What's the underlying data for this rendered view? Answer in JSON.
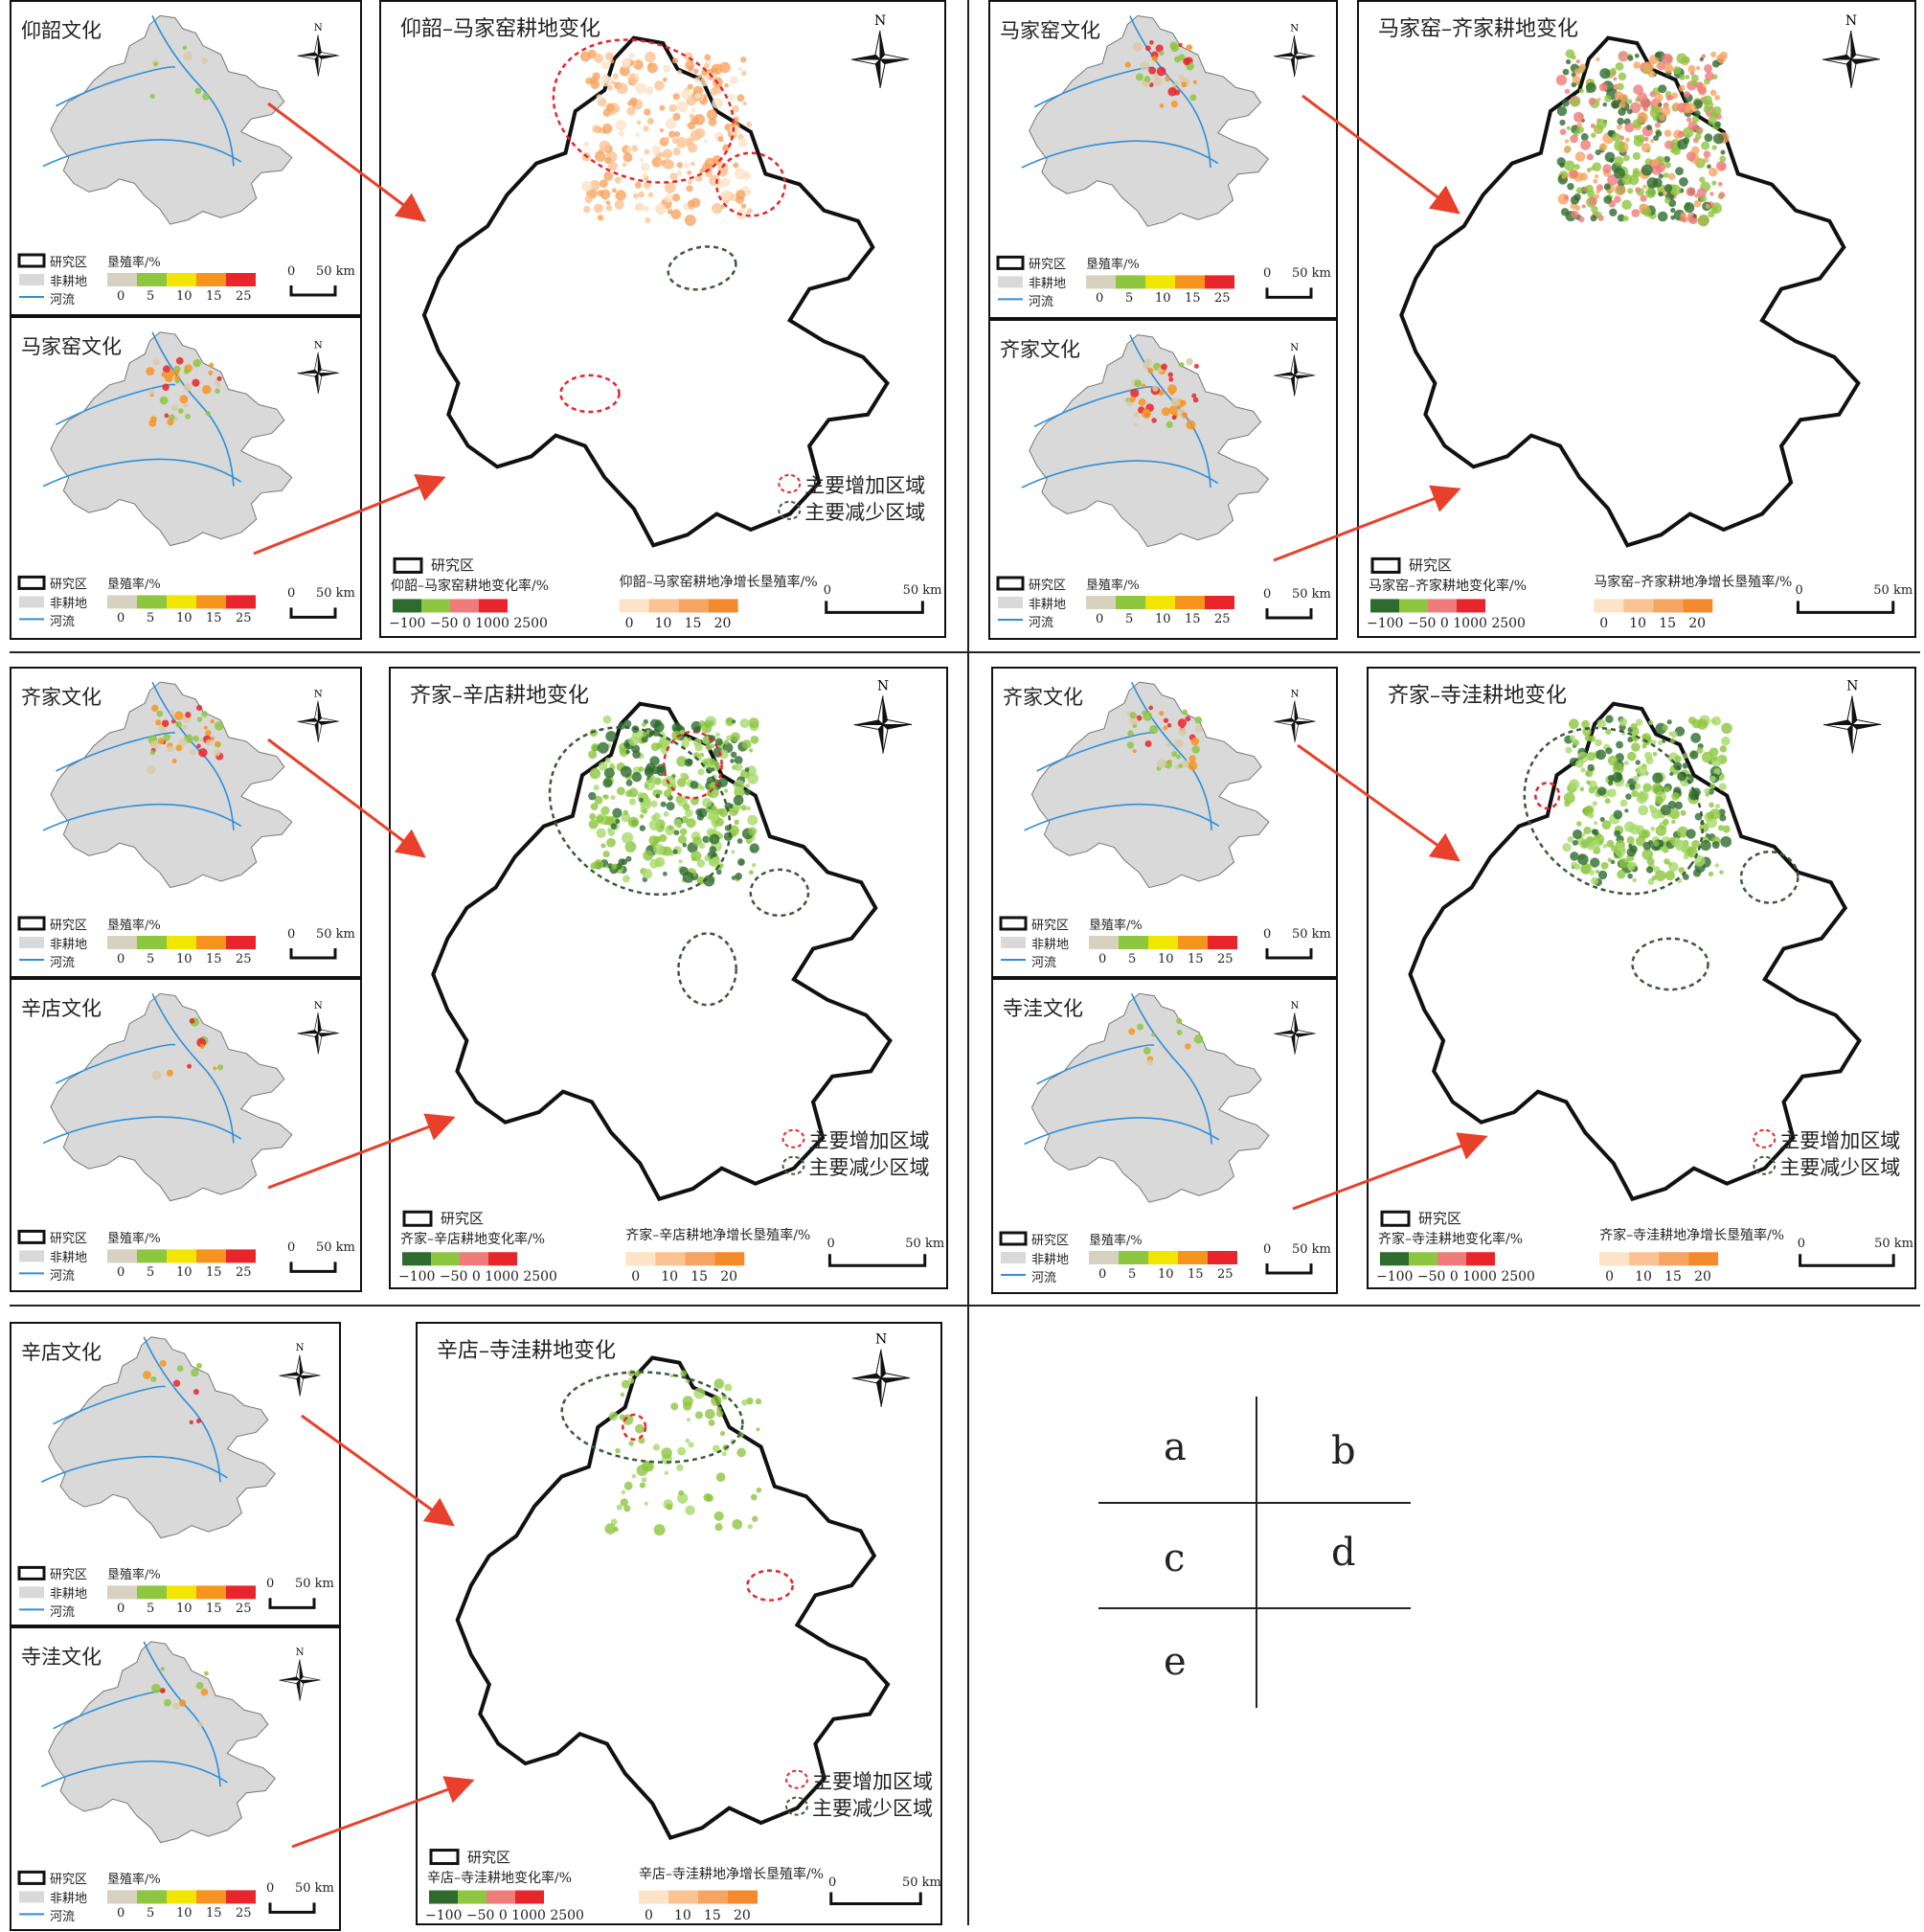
{
  "legend": {
    "study_area": "研究区",
    "non_farmland": "非耕地",
    "river": "河流",
    "reclaim_rate": "垦殖率/%",
    "reclaim_ticks": [
      "0",
      "5",
      "10",
      "15",
      "25"
    ],
    "change_ticks": "−100 −50 0 1000 2500",
    "net_ticks": [
      "0",
      "10",
      "15",
      "20"
    ],
    "scale_zero": "0",
    "scale_label": "50 km",
    "north": "N",
    "increase": "主要增加区域",
    "decrease": "主要减少区域"
  },
  "colors": {
    "reclaim": [
      "#d6d2bf",
      "#8dc63f",
      "#f2e500",
      "#f7941d",
      "#e8252a"
    ],
    "change": [
      "#2e6b2e",
      "#8dc63f",
      "#ef7b7b",
      "#e8252a"
    ],
    "net": [
      "#fde3c8",
      "#fbc393",
      "#f7a462",
      "#f58a2c"
    ],
    "increase_ring": "#e8252a",
    "decrease_ring": "#3a5a3a",
    "arrow": "#e8402a",
    "map_fill": "#d9d9d9",
    "river": "#2f8fd8"
  },
  "panels": [
    {
      "id": "a",
      "top": "仰韶文化",
      "bottom": "马家窑文化",
      "main": "仰韶–马家窑耕地变化",
      "change_label": "仰韶–马家窑耕地变化率/%",
      "net_label": "仰韶–马家窑耕地净增长垦殖率/%"
    },
    {
      "id": "b",
      "top": "马家窑文化",
      "bottom": "齐家文化",
      "main": "马家窑–齐家耕地变化",
      "change_label": "马家窑–齐家耕地变化率/%",
      "net_label": "马家窑–齐家耕地净增长垦殖率/%"
    },
    {
      "id": "c",
      "top": "齐家文化",
      "bottom": "辛店文化",
      "main": "齐家–辛店耕地变化",
      "change_label": "齐家–辛店耕地变化率/%",
      "net_label": "齐家–辛店耕地净增长垦殖率/%"
    },
    {
      "id": "d",
      "top": "齐家文化",
      "bottom": "寺洼文化",
      "main": "齐家–寺洼耕地变化",
      "change_label": "齐家–寺洼耕地变化率/%",
      "net_label": "齐家–寺洼耕地净增长垦殖率/%"
    },
    {
      "id": "e",
      "top": "辛店文化",
      "bottom": "寺洼文化",
      "main": "辛店–寺洼耕地变化",
      "change_label": "辛店–寺洼耕地变化率/%",
      "net_label": "辛店–寺洼耕地净增长垦殖率/%"
    }
  ],
  "key_letters": [
    "a",
    "b",
    "c",
    "d",
    "e"
  ]
}
